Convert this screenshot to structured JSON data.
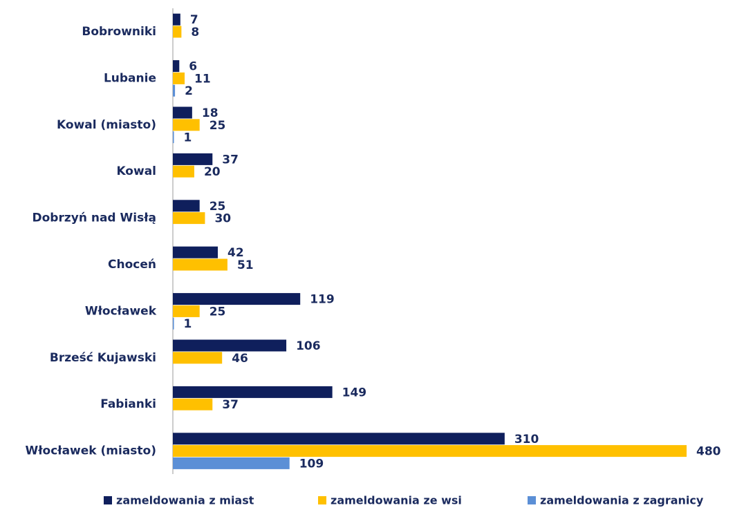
{
  "chart_data": {
    "type": "hbar",
    "categories": [
      "Bobrowniki",
      "Lubanie",
      "Kowal (miasto)",
      "Kowal",
      "Dobrzyń nad Wisłą",
      "Choceń",
      "Włocławek",
      "Brześć Kujawski",
      "Fabianki",
      "Włocławek (miasto)"
    ],
    "series": [
      {
        "name": "zameldowania z miast",
        "color": "#0f1f5c",
        "values": [
          7,
          6,
          18,
          37,
          25,
          42,
          119,
          106,
          149,
          310
        ]
      },
      {
        "name": "zameldowania ze wsi",
        "color": "#ffc000",
        "values": [
          8,
          11,
          25,
          20,
          30,
          51,
          25,
          46,
          37,
          480
        ]
      },
      {
        "name": "zameldowania z zagranicy",
        "color": "#5b8fd6",
        "values": [
          null,
          2,
          1,
          null,
          null,
          null,
          1,
          null,
          null,
          109
        ]
      }
    ],
    "xlim": [
      0,
      480
    ],
    "legend": "bottom"
  }
}
